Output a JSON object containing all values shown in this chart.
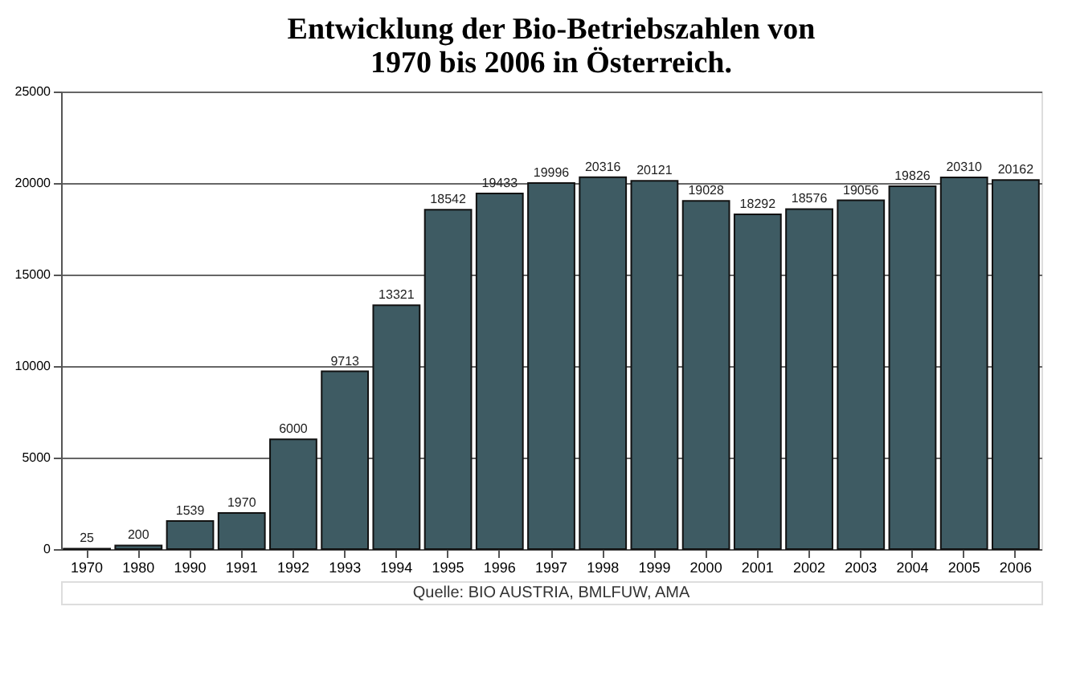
{
  "chart_data": {
    "type": "bar",
    "title": [
      "Entwicklung der Bio-Betriebszahlen von",
      "1970 bis 2006 in Österreich."
    ],
    "categories": [
      "1970",
      "1980",
      "1990",
      "1991",
      "1992",
      "1993",
      "1994",
      "1995",
      "1996",
      "1997",
      "1998",
      "1999",
      "2000",
      "2001",
      "2002",
      "2003",
      "2004",
      "2005",
      "2006"
    ],
    "values": [
      25,
      200,
      1539,
      1970,
      6000,
      9713,
      13321,
      18542,
      19433,
      19996,
      20316,
      20121,
      19028,
      18292,
      18576,
      19056,
      19826,
      20310,
      20162
    ],
    "color": "#3e5b63",
    "ylim": [
      0,
      25000
    ],
    "yticks": [
      0,
      5000,
      10000,
      15000,
      20000,
      25000
    ],
    "grid": "y",
    "data_labels": true,
    "annotations": [
      "Quelle: BIO AUSTRIA, BMLFUW, AMA"
    ]
  }
}
